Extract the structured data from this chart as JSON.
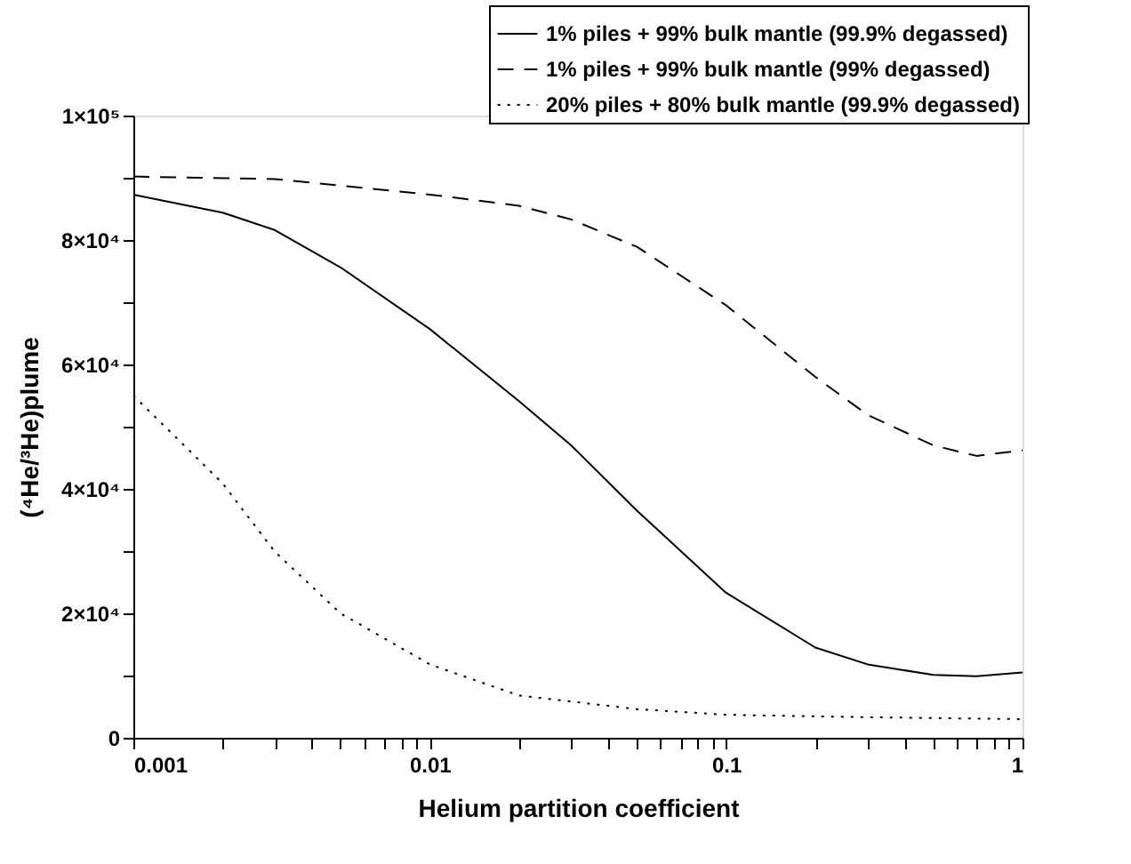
{
  "chart_data": {
    "type": "line",
    "xlabel": "Helium partition coefficient",
    "ylabel": "(⁴He/³He)plume",
    "log": "x",
    "xlim": [
      0.001,
      1
    ],
    "ylim": [
      0,
      100000
    ],
    "xticks": [
      0.001,
      {
        "value": 0.002,
        "label": null
      },
      {
        "value": 0.003,
        "label": null
      },
      {
        "value": 0.004,
        "label": null
      },
      {
        "value": 0.005,
        "label": null
      },
      {
        "value": 0.006,
        "label": null
      },
      {
        "value": 0.007,
        "label": null
      },
      {
        "value": 0.008,
        "label": null
      },
      {
        "value": 0.009,
        "label": null
      },
      0.01,
      {
        "value": 0.02,
        "label": null
      },
      {
        "value": 0.03,
        "label": null
      },
      {
        "value": 0.04,
        "label": null
      },
      {
        "value": 0.05,
        "label": null
      },
      {
        "value": 0.06,
        "label": null
      },
      {
        "value": 0.07,
        "label": null
      },
      {
        "value": 0.08,
        "label": null
      },
      {
        "value": 0.09,
        "label": null
      },
      0.1,
      {
        "value": 0.2,
        "label": null
      },
      {
        "value": 0.3,
        "label": null
      },
      {
        "value": 0.4,
        "label": null
      },
      {
        "value": 0.5,
        "label": null
      },
      {
        "value": 0.6,
        "label": null
      },
      {
        "value": 0.7,
        "label": null
      },
      {
        "value": 0.8,
        "label": null
      },
      {
        "value": 0.9,
        "label": null
      },
      1
    ],
    "yticks": [
      0,
      {
        "value": 10000,
        "label": null
      },
      {
        "value": 20000,
        "label": "2×10⁴"
      },
      {
        "value": 30000,
        "label": null
      },
      {
        "value": 40000,
        "label": "4×10⁴"
      },
      {
        "value": 50000,
        "label": null
      },
      {
        "value": 60000,
        "label": "6×10⁴"
      },
      {
        "value": 70000,
        "label": null
      },
      {
        "value": 80000,
        "label": "8×10⁴"
      },
      {
        "value": 90000,
        "label": null
      },
      {
        "value": 100000,
        "label": "1×10⁵"
      }
    ],
    "legend": "top right",
    "marker": "none",
    "grid": false,
    "series": [
      {
        "name": "1% piles + 99% bulk mantle (99.9% degassed)",
        "color": "#000000",
        "line_style": "solid",
        "x": [
          0.001,
          0.002,
          0.003,
          0.005,
          0.01,
          0.02,
          0.03,
          0.05,
          0.1,
          0.2,
          0.3,
          0.5,
          0.7,
          1
        ],
        "values": [
          87300,
          84400,
          81600,
          75600,
          65700,
          54100,
          47000,
          36500,
          23300,
          14500,
          11800,
          10100,
          9900,
          10500
        ]
      },
      {
        "name": "1% piles + 99% bulk mantle (99% degassed)",
        "color": "#000000",
        "line_style": "dashed",
        "x": [
          0.001,
          0.003,
          0.01,
          0.02,
          0.03,
          0.05,
          0.1,
          0.2,
          0.3,
          0.5,
          0.7,
          1
        ],
        "values": [
          90200,
          89800,
          87300,
          85500,
          83300,
          78900,
          69500,
          58000,
          51900,
          47000,
          45300,
          46200
        ]
      },
      {
        "name": "20% piles + 80% bulk mantle (99.9% degassed)",
        "color": "#000000",
        "line_style": "dotted",
        "x": [
          0.001,
          0.002,
          0.003,
          0.005,
          0.01,
          0.02,
          0.05,
          0.1,
          0.3,
          1
        ],
        "values": [
          55000,
          40900,
          29900,
          20000,
          11800,
          6800,
          4600,
          3700,
          3300,
          3000
        ]
      }
    ]
  }
}
